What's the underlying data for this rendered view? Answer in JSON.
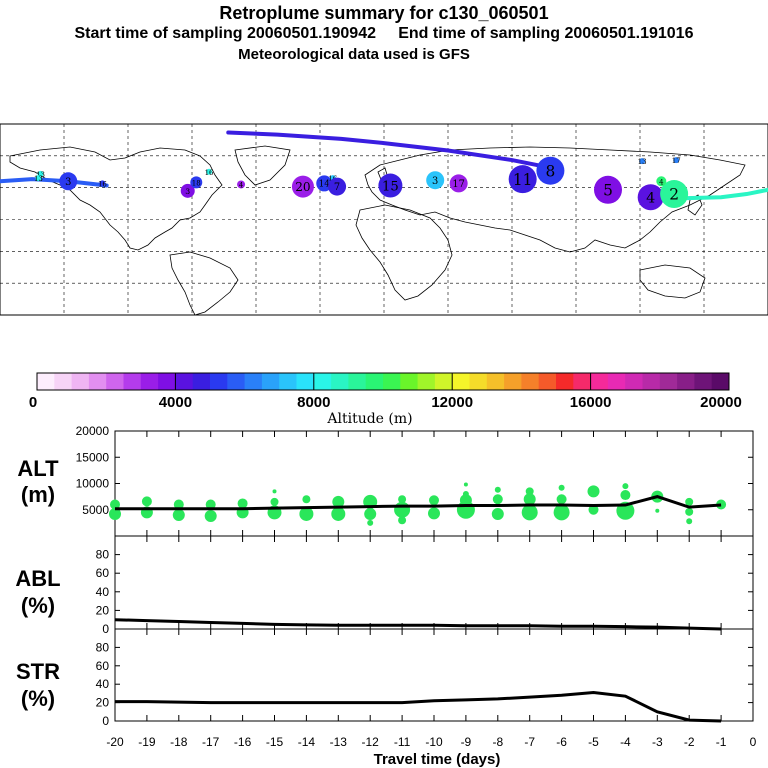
{
  "header": {
    "title": "Retroplume summary for c130_060501",
    "sampling": "Start time of sampling 20060501.190942     End time of sampling 20060501.191016",
    "met": "Meteorological data used is GFS"
  },
  "colorbar": {
    "title": "Altitude (m)",
    "ticks": [
      "0",
      "4000",
      "8000",
      "12000",
      "16000",
      "20000"
    ],
    "colors": [
      "#fdeefd",
      "#f7d4f7",
      "#efb5f3",
      "#e28ff0",
      "#cf65ed",
      "#b43cec",
      "#9a1ee8",
      "#7f0fe4",
      "#5a12e0",
      "#3a1ee0",
      "#2a3af0",
      "#2a5df5",
      "#2a80f8",
      "#2aa2fa",
      "#2ac4fb",
      "#2ae3fb",
      "#2af5e8",
      "#2af5c4",
      "#2af59a",
      "#2af574",
      "#3af552",
      "#6af52a",
      "#a0f52a",
      "#d0f52a",
      "#f5f52a",
      "#f5dc2a",
      "#f5c02a",
      "#f5a02a",
      "#f5802a",
      "#f55a2a",
      "#f52a2a",
      "#f52a6a",
      "#f52a9a",
      "#e82ab4",
      "#d02ab4",
      "#b82aa8",
      "#a02a98",
      "#881e88",
      "#6e1478",
      "#5a0a68"
    ]
  },
  "chart_data": [
    {
      "type": "scatter",
      "panel": "ALT",
      "ylabel": "ALT",
      "yunit": "(m)",
      "ylim": [
        0,
        20000
      ],
      "yticks": [
        5000,
        10000,
        15000,
        20000
      ],
      "xlim": [
        -20,
        0
      ],
      "median_line": {
        "x": [
          -20,
          -19,
          -18,
          -17,
          -16,
          -15,
          -14,
          -13,
          -12,
          -11,
          -10,
          -9,
          -8,
          -7,
          -6,
          -5,
          -4,
          -3,
          -2,
          -1
        ],
        "y": [
          5200,
          5200,
          5200,
          5200,
          5200,
          5300,
          5400,
          5500,
          5600,
          5700,
          5700,
          5800,
          5800,
          5900,
          5900,
          5800,
          5900,
          7500,
          5500,
          5900
        ]
      },
      "dots": [
        {
          "x": -20,
          "y": 6000,
          "s": 5
        },
        {
          "x": -20,
          "y": 4200,
          "s": 6
        },
        {
          "x": -19,
          "y": 6600,
          "s": 5
        },
        {
          "x": -19,
          "y": 4500,
          "s": 6
        },
        {
          "x": -18,
          "y": 6000,
          "s": 5
        },
        {
          "x": -18,
          "y": 4000,
          "s": 6
        },
        {
          "x": -17,
          "y": 6000,
          "s": 5
        },
        {
          "x": -17,
          "y": 3800,
          "s": 6
        },
        {
          "x": -16,
          "y": 6200,
          "s": 5
        },
        {
          "x": -16,
          "y": 4500,
          "s": 6
        },
        {
          "x": -15,
          "y": 8500,
          "s": 2
        },
        {
          "x": -15,
          "y": 6500,
          "s": 4
        },
        {
          "x": -15,
          "y": 4500,
          "s": 7
        },
        {
          "x": -14,
          "y": 7000,
          "s": 4
        },
        {
          "x": -14,
          "y": 4200,
          "s": 7
        },
        {
          "x": -13,
          "y": 6500,
          "s": 6
        },
        {
          "x": -13,
          "y": 4200,
          "s": 7
        },
        {
          "x": -12,
          "y": 6500,
          "s": 7
        },
        {
          "x": -12,
          "y": 4200,
          "s": 6
        },
        {
          "x": -12,
          "y": 2500,
          "s": 3
        },
        {
          "x": -11,
          "y": 7000,
          "s": 4
        },
        {
          "x": -11,
          "y": 5000,
          "s": 8
        },
        {
          "x": -11,
          "y": 3000,
          "s": 4
        },
        {
          "x": -10,
          "y": 6800,
          "s": 5
        },
        {
          "x": -10,
          "y": 4300,
          "s": 6
        },
        {
          "x": -9,
          "y": 9800,
          "s": 2
        },
        {
          "x": -9,
          "y": 8000,
          "s": 3
        },
        {
          "x": -9,
          "y": 6800,
          "s": 6
        },
        {
          "x": -9,
          "y": 5000,
          "s": 9
        },
        {
          "x": -8,
          "y": 8800,
          "s": 3
        },
        {
          "x": -8,
          "y": 7000,
          "s": 5
        },
        {
          "x": -8,
          "y": 4200,
          "s": 6
        },
        {
          "x": -7,
          "y": 8500,
          "s": 4
        },
        {
          "x": -7,
          "y": 7000,
          "s": 6
        },
        {
          "x": -7,
          "y": 4500,
          "s": 8
        },
        {
          "x": -6,
          "y": 9200,
          "s": 3
        },
        {
          "x": -6,
          "y": 7000,
          "s": 5
        },
        {
          "x": -6,
          "y": 4500,
          "s": 8
        },
        {
          "x": -5,
          "y": 8500,
          "s": 6
        },
        {
          "x": -5,
          "y": 5000,
          "s": 5
        },
        {
          "x": -4,
          "y": 9500,
          "s": 3
        },
        {
          "x": -4,
          "y": 7800,
          "s": 5
        },
        {
          "x": -4,
          "y": 4800,
          "s": 9
        },
        {
          "x": -3,
          "y": 7500,
          "s": 6
        },
        {
          "x": -3,
          "y": 4800,
          "s": 2
        },
        {
          "x": -2,
          "y": 6500,
          "s": 4
        },
        {
          "x": -2,
          "y": 4600,
          "s": 4
        },
        {
          "x": -2,
          "y": 2800,
          "s": 3
        },
        {
          "x": -1,
          "y": 6000,
          "s": 5
        }
      ]
    },
    {
      "type": "line",
      "panel": "ABL",
      "ylabel": "ABL",
      "yunit": "(%)",
      "ylim": [
        0,
        100
      ],
      "yticks": [
        0,
        20,
        40,
        60,
        80
      ],
      "x": [
        -20,
        -19,
        -18,
        -17,
        -16,
        -15,
        -14,
        -13,
        -12,
        -11,
        -10,
        -9,
        -8,
        -7,
        -6,
        -5,
        -4,
        -3,
        -2,
        -1
      ],
      "y": [
        10,
        9,
        8,
        7,
        6,
        5,
        4.5,
        4,
        4,
        4,
        4,
        3.5,
        3.5,
        3.5,
        3,
        3,
        2.5,
        2,
        1,
        0
      ]
    },
    {
      "type": "line",
      "panel": "STR",
      "ylabel": "STR",
      "yunit": "(%)",
      "ylim": [
        0,
        100
      ],
      "yticks": [
        0,
        20,
        40,
        60,
        80
      ],
      "x": [
        -20,
        -19,
        -18,
        -17,
        -16,
        -15,
        -14,
        -13,
        -12,
        -11,
        -10,
        -9,
        -8,
        -7,
        -6,
        -5,
        -4,
        -3,
        -2,
        -1
      ],
      "y": [
        21,
        21,
        20.5,
        20,
        20,
        20,
        20,
        20,
        20,
        20,
        22,
        23,
        24,
        26,
        28,
        31,
        27,
        10,
        1,
        0
      ],
      "xlabel": "Travel time (days)",
      "xticks": [
        "-20",
        "-19",
        "-18",
        "-17",
        "-16",
        "-15",
        "-14",
        "-13",
        "-12",
        "-11",
        "-10",
        "-9",
        "-8",
        "-7",
        "-6",
        "-5",
        "-4",
        "-3",
        "-2",
        "-1",
        "0"
      ]
    }
  ],
  "map": {
    "plumes": [
      {
        "label": "13",
        "lon": -161,
        "lat": 43,
        "alt": 8000,
        "r": 3
      },
      {
        "label": "13",
        "lon": -162,
        "lat": 39,
        "alt": 8000,
        "r": 3
      },
      {
        "label": "3",
        "lon": -148,
        "lat": 36,
        "alt": 5000,
        "r": 9
      },
      {
        "label": "16",
        "lon": -132,
        "lat": 34,
        "alt": 5000,
        "r": 3
      },
      {
        "label": "3",
        "lon": -92,
        "lat": 27,
        "alt": 3500,
        "r": 7
      },
      {
        "label": "18",
        "lon": -88,
        "lat": 35,
        "alt": 5000,
        "r": 6
      },
      {
        "label": "16",
        "lon": -82,
        "lat": 45,
        "alt": 8000,
        "r": 3
      },
      {
        "label": "4",
        "lon": -67,
        "lat": 33,
        "alt": 3000,
        "r": 4
      },
      {
        "label": "20",
        "lon": -38,
        "lat": 31,
        "alt": 3000,
        "r": 11
      },
      {
        "label": "14",
        "lon": -28,
        "lat": 34,
        "alt": 5000,
        "r": 8
      },
      {
        "label": "16",
        "lon": -24,
        "lat": 39,
        "alt": 7000,
        "r": 3
      },
      {
        "label": "7",
        "lon": -22,
        "lat": 31,
        "alt": 4500,
        "r": 9
      },
      {
        "label": "15",
        "lon": 3,
        "lat": 32,
        "alt": 4500,
        "r": 12
      },
      {
        "label": "17",
        "lon": 35,
        "lat": 34,
        "alt": 3000,
        "r": 9
      },
      {
        "label": "3",
        "lon": 24,
        "lat": 37,
        "alt": 7000,
        "r": 9
      },
      {
        "label": "8",
        "lon": 78,
        "lat": 46,
        "alt": 5000,
        "r": 14
      },
      {
        "label": "11",
        "lon": 65,
        "lat": 38,
        "alt": 4500,
        "r": 14
      },
      {
        "label": "5",
        "lon": 105,
        "lat": 28,
        "alt": 3500,
        "r": 14
      },
      {
        "label": "4",
        "lon": 125,
        "lat": 21,
        "alt": 4000,
        "r": 13
      },
      {
        "label": "2",
        "lon": 136,
        "lat": 24,
        "alt": 9000,
        "r": 14
      },
      {
        "label": "4",
        "lon": 130,
        "lat": 36,
        "alt": 9500,
        "r": 5
      },
      {
        "label": "13",
        "lon": 121,
        "lat": 55,
        "alt": 6000,
        "r": 3
      },
      {
        "label": "17",
        "lon": 137,
        "lat": 56,
        "alt": 6000,
        "r": 3
      }
    ],
    "tracks": [
      {
        "lon": [
          -180,
          -165,
          -148,
          -130
        ],
        "lat": [
          36,
          38,
          36,
          32
        ],
        "alt": 5500
      },
      {
        "lon": [
          -73,
          -50,
          -20,
          0,
          30,
          60,
          75
        ],
        "lat": [
          82,
          80,
          76,
          72,
          65,
          56,
          50
        ],
        "alt": 4500
      },
      {
        "lon": [
          140,
          158,
          170,
          180
        ],
        "lat": [
          20,
          21,
          24,
          28
        ],
        "alt": 8500
      }
    ]
  }
}
